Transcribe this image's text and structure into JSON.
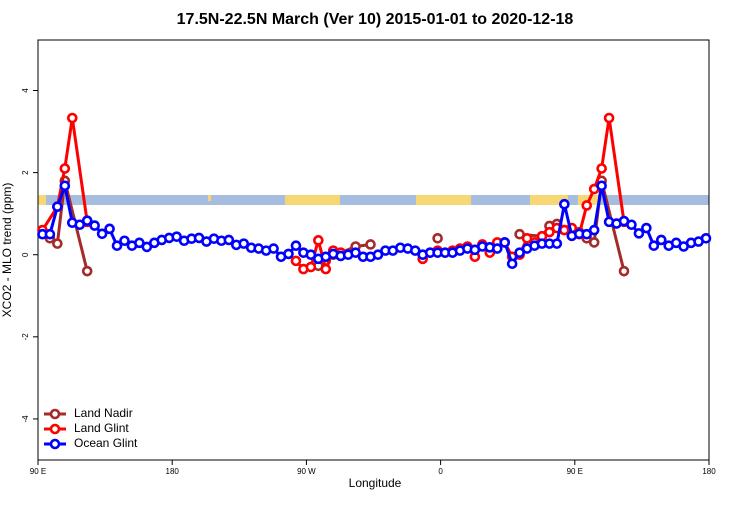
{
  "chart_data": {
    "type": "line",
    "title": "17.5N-22.5N March (Ver 10)   2015-01-01 to 2020-12-18",
    "xlabel": "Longitude",
    "ylabel": "XCO2 - MLO trend (ppm)",
    "xlim": [
      90,
      540
    ],
    "ylim": [
      -5,
      5.23
    ],
    "xticks": [
      {
        "value": 90,
        "label": "90 E"
      },
      180,
      {
        "value": 270,
        "label": "90 W"
      },
      {
        "value": 360,
        "label": "0"
      },
      {
        "value": 450,
        "label": "90 E"
      },
      {
        "value": 540,
        "label": "180"
      }
    ],
    "yticks": [
      -4,
      -2,
      0,
      2,
      4
    ],
    "legend": "bottomleft",
    "series": [
      {
        "name": "Land Nadir",
        "color": "#a52a2a",
        "x": [
          98,
          103,
          108,
          123,
          200,
          278,
          283,
          288,
          293,
          303,
          313,
          330,
          358,
          380,
          413,
          428,
          433,
          438,
          448,
          453,
          458,
          463,
          468,
          483
        ],
        "values": [
          0.4,
          0.27,
          1.8,
          -0.4,
          null,
          -0.27,
          -0.15,
          0.0,
          0.05,
          0.2,
          0.25,
          null,
          0.4,
          null,
          0.5,
          0.45,
          0.7,
          0.75,
          0.6,
          0.55,
          0.4,
          0.3,
          1.8,
          -0.4
        ]
      },
      {
        "name": "Land Glint",
        "color": "#ff0000",
        "x": [
          93,
          103,
          108,
          113,
          123,
          190,
          263,
          268,
          273,
          278,
          283,
          288,
          293,
          300,
          348,
          353,
          358,
          363,
          368,
          373,
          378,
          383,
          388,
          393,
          398,
          403,
          408,
          413,
          418,
          423,
          428,
          433,
          438,
          443,
          448,
          453,
          458,
          463,
          468,
          473,
          483
        ],
        "values": [
          0.6,
          1.17,
          2.1,
          3.33,
          0.8,
          null,
          -0.15,
          -0.35,
          -0.3,
          0.35,
          -0.35,
          0.1,
          0.05,
          null,
          -0.1,
          0.05,
          0.1,
          0.05,
          0.1,
          0.15,
          0.2,
          -0.05,
          0.25,
          0.05,
          0.3,
          0.3,
          -0.05,
          0.0,
          0.4,
          0.3,
          0.45,
          0.55,
          0.65,
          0.6,
          0.65,
          0.5,
          1.2,
          1.6,
          2.1,
          3.33,
          0.8
        ]
      },
      {
        "name": "Ocean Glint",
        "color": "#0000ff",
        "x": [
          93,
          98,
          103,
          108,
          113,
          118,
          123,
          128,
          133,
          138,
          143,
          148,
          153,
          158,
          163,
          168,
          173,
          178,
          183,
          188,
          193,
          198,
          203,
          208,
          213,
          218,
          223,
          228,
          233,
          238,
          243,
          248,
          253,
          258,
          263,
          268,
          273,
          278,
          283,
          288,
          293,
          298,
          303,
          308,
          313,
          318,
          323,
          328,
          333,
          338,
          343,
          348,
          353,
          358,
          363,
          368,
          373,
          378,
          383,
          388,
          393,
          398,
          403,
          408,
          413,
          418,
          423,
          428,
          433,
          438,
          443,
          448,
          453,
          458,
          463,
          468,
          473,
          478,
          483,
          488,
          493,
          498,
          503,
          508,
          513,
          518,
          523,
          528,
          533,
          538
        ],
        "values": [
          0.5,
          0.5,
          1.17,
          1.68,
          0.78,
          0.73,
          0.83,
          0.71,
          0.51,
          0.63,
          0.22,
          0.34,
          0.22,
          0.29,
          0.19,
          0.29,
          0.36,
          0.41,
          0.44,
          0.34,
          0.39,
          0.41,
          0.32,
          0.39,
          0.34,
          0.36,
          0.24,
          0.27,
          0.17,
          0.15,
          0.1,
          0.15,
          -0.05,
          0.02,
          0.22,
          0.05,
          0.0,
          -0.1,
          -0.05,
          0.02,
          -0.03,
          0.0,
          0.05,
          -0.05,
          -0.05,
          0.0,
          0.1,
          0.1,
          0.17,
          0.15,
          0.1,
          0.0,
          0.05,
          0.05,
          0.05,
          0.05,
          0.1,
          0.15,
          0.12,
          0.2,
          0.18,
          0.15,
          0.3,
          -0.22,
          0.05,
          0.15,
          0.22,
          0.27,
          0.27,
          0.27,
          1.23,
          0.46,
          0.51,
          0.5,
          0.6,
          1.68,
          0.8,
          0.76,
          0.82,
          0.73,
          0.52,
          0.65,
          0.22,
          0.36,
          0.22,
          0.29,
          0.2,
          0.29,
          0.32,
          0.4
        ]
      }
    ]
  }
}
